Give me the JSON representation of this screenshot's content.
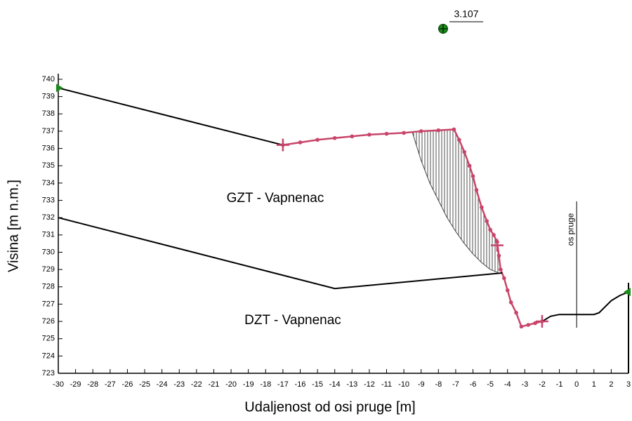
{
  "chart_data": {
    "type": "line",
    "xlabel": "Udaljenost od osi pruge [m]",
    "ylabel": "Visina [m n.m.]",
    "xlim": [
      -30,
      3
    ],
    "ylim": [
      723,
      740
    ],
    "xticks": [
      -30,
      -29,
      -28,
      -27,
      -26,
      -25,
      -24,
      -23,
      -22,
      -21,
      -20,
      -19,
      -18,
      -17,
      -16,
      -15,
      -14,
      -13,
      -12,
      -11,
      -10,
      -9,
      -8,
      -7,
      -6,
      -5,
      -4,
      -3,
      -2,
      -1,
      0,
      1,
      2,
      3
    ],
    "yticks": [
      723,
      724,
      725,
      726,
      727,
      728,
      729,
      730,
      731,
      732,
      733,
      734,
      735,
      736,
      737,
      738,
      739,
      740
    ],
    "series": [
      {
        "color": "#000000",
        "x": [
          -30,
          -17
        ],
        "values": [
          739.5,
          736.2
        ]
      },
      {
        "color": "#c8456a",
        "markers": true,
        "x": [
          -17,
          -16,
          -15,
          -14,
          -13,
          -12,
          -11,
          -10,
          -9,
          -8,
          -7.1,
          -6.8,
          -6.5,
          -6.2,
          -6,
          -5.8,
          -5.5,
          -5.2,
          -5,
          -4.8,
          -4.6,
          -4.5,
          -4.4,
          -4.2,
          -4,
          -3.8,
          -3.5,
          -3.2,
          -2.8,
          -2.4,
          -2
        ],
        "values": [
          736.2,
          736.35,
          736.5,
          736.6,
          736.7,
          736.8,
          736.85,
          736.9,
          737,
          737.05,
          737.1,
          736.5,
          735.8,
          735,
          734.4,
          733.6,
          732.6,
          731.8,
          731.3,
          731,
          730.6,
          729.8,
          729,
          728.5,
          727.8,
          727.1,
          726.5,
          725.7,
          725.8,
          725.9,
          726
        ]
      },
      {
        "color": "#000000",
        "x": [
          -2,
          -1.5,
          -1,
          0,
          1,
          1.3,
          2,
          2.5,
          3
        ],
        "values": [
          726,
          726.3,
          726.4,
          726.4,
          726.4,
          726.5,
          727.2,
          727.5,
          727.7
        ]
      },
      {
        "color": "#000000",
        "x": [
          -30,
          -14,
          -4.3
        ],
        "values": [
          732,
          727.9,
          728.8
        ]
      },
      {
        "color": "#444444",
        "slip": true,
        "x": [
          -9.5,
          -9,
          -8.5,
          -8,
          -7.5,
          -7,
          -6.5,
          -6,
          -5.5,
          -5,
          -4.5
        ],
        "values": [
          736.9,
          735.3,
          734,
          733,
          732,
          731.2,
          730.5,
          729.9,
          729.4,
          729,
          728.8
        ]
      }
    ],
    "cross_markers": {
      "color": "#c8456a",
      "x": [
        -17,
        -4.6,
        -2
      ],
      "values": [
        736.2,
        730.4,
        726
      ]
    },
    "end_markers": {
      "color": "#1a8a1a",
      "x": [
        -30,
        3
      ],
      "values": [
        739.5,
        727.7
      ]
    },
    "track_axis": {
      "label": "os pruge",
      "x": 0
    },
    "factor_of_safety": 3.107,
    "annotations": [
      "GZT - Vapnenac",
      "DZT - Vapnenac"
    ]
  }
}
